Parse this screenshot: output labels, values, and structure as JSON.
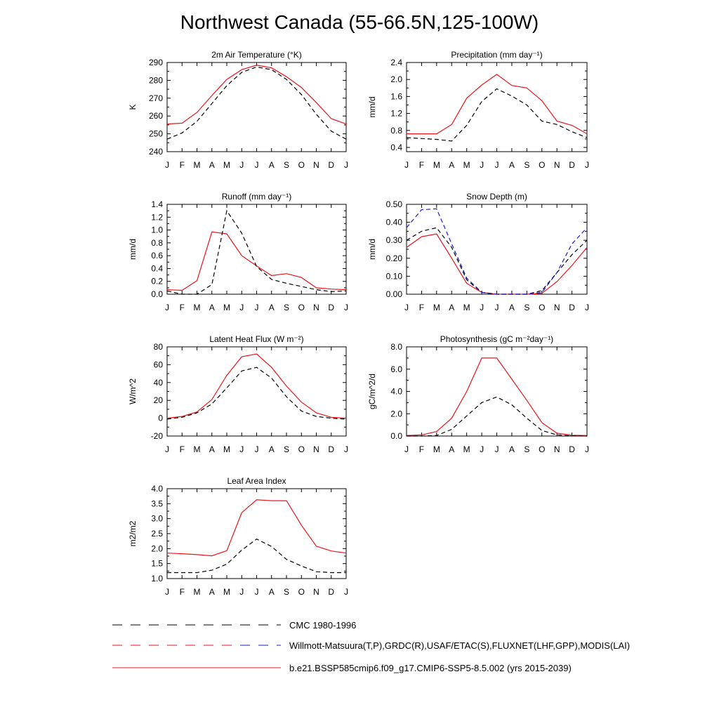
{
  "title": "Northwest Canada (55-66.5N,125-100W)",
  "months": [
    "J",
    "F",
    "M",
    "A",
    "M",
    "J",
    "J",
    "A",
    "S",
    "O",
    "N",
    "D",
    "J"
  ],
  "colors": {
    "model": "#e8151b",
    "obs": "#000000",
    "obs2": "#1b1bd6",
    "axis": "#000000"
  },
  "legend": [
    {
      "text": "CMC 1980-1996",
      "style": "dashed-black"
    },
    {
      "text": "Willmott-Matsuura(T,P),GRDC(R),USAF/ETAC(S),FLUXNET(LHF,GPP),MODIS(LAI)",
      "style": "dashed-red-blue"
    },
    {
      "text": "b.e21.BSSP585cmip6.f09_g17.CMIP6-SSP5-8.5.002 (yrs 2015-2039)",
      "style": "solid-red"
    }
  ],
  "chart_data": [
    {
      "type": "line",
      "title": "2m Air Temperature (°K)",
      "ylabel": "K",
      "ylim": [
        240,
        290
      ],
      "yticks": [
        240,
        250,
        260,
        270,
        280,
        290
      ],
      "ytick_labels": [
        "240",
        "250",
        "260",
        "270",
        "280",
        "290"
      ],
      "series": [
        {
          "role": "model",
          "values": [
            255.5,
            256,
            262,
            271.5,
            280.5,
            286,
            288.5,
            287,
            282,
            276,
            267.5,
            258.5,
            255.5
          ]
        },
        {
          "role": "obs",
          "values": [
            247,
            250.5,
            257,
            267,
            277,
            284.5,
            287.5,
            286,
            280.5,
            272,
            261,
            251.5,
            247
          ]
        }
      ]
    },
    {
      "type": "line",
      "title": "Precipitation (mm day⁻¹)",
      "ylabel": "mm/d",
      "ylim": [
        0.3,
        2.4
      ],
      "yticks": [
        0.4,
        0.8,
        1.2,
        1.6,
        2.0,
        2.4
      ],
      "ytick_labels": [
        "0.4",
        "0.8",
        "1.2",
        "1.6",
        "2.0",
        "2.4"
      ],
      "series": [
        {
          "role": "model",
          "values": [
            0.72,
            0.72,
            0.72,
            0.94,
            1.56,
            1.87,
            2.12,
            1.86,
            1.8,
            1.5,
            1.02,
            0.92,
            0.72
          ]
        },
        {
          "role": "obs",
          "values": [
            0.63,
            0.61,
            0.59,
            0.55,
            0.92,
            1.48,
            1.78,
            1.61,
            1.4,
            1.02,
            0.94,
            0.77,
            0.63
          ]
        }
      ]
    },
    {
      "type": "line",
      "title": "Runoff (mm day⁻¹)",
      "ylabel": "mm/d",
      "ylim": [
        0,
        1.4
      ],
      "yticks": [
        0,
        0.2,
        0.4,
        0.6,
        0.8,
        1.0,
        1.2,
        1.4
      ],
      "ytick_labels": [
        "0.0",
        "0.2",
        "0.4",
        "0.6",
        "0.8",
        "1.0",
        "1.2",
        "1.4"
      ],
      "series": [
        {
          "role": "model",
          "values": [
            0.07,
            0.06,
            0.21,
            0.97,
            0.94,
            0.6,
            0.44,
            0.29,
            0.32,
            0.26,
            0.1,
            0.08,
            0.07
          ]
        },
        {
          "role": "obs",
          "values": [
            0.05,
            0.0,
            0.0,
            0.15,
            1.3,
            0.95,
            0.43,
            0.23,
            0.17,
            0.12,
            0.07,
            0.04,
            0.05
          ]
        }
      ]
    },
    {
      "type": "line",
      "title": "Snow Depth (m)",
      "ylabel": "mm/d",
      "ylim": [
        0,
        0.5
      ],
      "yticks": [
        0,
        0.1,
        0.2,
        0.3,
        0.4,
        0.5
      ],
      "ytick_labels": [
        "0.00",
        "0.10",
        "0.20",
        "0.30",
        "0.40",
        "0.50"
      ],
      "series": [
        {
          "role": "model",
          "values": [
            0.26,
            0.32,
            0.335,
            0.2,
            0.06,
            0.01,
            0.0,
            0.0,
            0.0,
            0.005,
            0.07,
            0.16,
            0.26
          ]
        },
        {
          "role": "obs",
          "values": [
            0.3,
            0.35,
            0.37,
            0.26,
            0.08,
            0.01,
            0.0,
            0.0,
            0.0,
            0.02,
            0.12,
            0.22,
            0.3
          ]
        },
        {
          "role": "obs2",
          "values": [
            0.37,
            0.47,
            0.475,
            0.28,
            0.09,
            0.01,
            0.0,
            0.0,
            0.0,
            0.01,
            0.12,
            0.28,
            0.37
          ]
        }
      ]
    },
    {
      "type": "line",
      "title": "Latent Heat Flux (W m⁻²)",
      "ylabel": "W/m^2",
      "ylim": [
        -20,
        80
      ],
      "yticks": [
        -20,
        0,
        20,
        40,
        60,
        80
      ],
      "ytick_labels": [
        "-20",
        "0",
        "20",
        "40",
        "60",
        "80"
      ],
      "series": [
        {
          "role": "model",
          "values": [
            0,
            2,
            7,
            21,
            48,
            69,
            72,
            57,
            36,
            18,
            6,
            1,
            0
          ]
        },
        {
          "role": "obs",
          "values": [
            -1,
            1,
            6,
            16,
            34,
            53,
            57,
            45,
            24,
            8,
            2,
            0,
            -1
          ]
        }
      ]
    },
    {
      "type": "line",
      "title": "Photosynthesis (gC m⁻²day⁻¹)",
      "ylabel": "gC/m^2/d",
      "ylim": [
        0,
        8
      ],
      "yticks": [
        0,
        2,
        4,
        6,
        8
      ],
      "ytick_labels": [
        "0.0",
        "2.0",
        "4.0",
        "6.0",
        "8.0"
      ],
      "series": [
        {
          "role": "model",
          "values": [
            0.05,
            0.1,
            0.4,
            1.6,
            4.0,
            7.0,
            7.0,
            5.1,
            3.2,
            1.2,
            0.25,
            0.07,
            0.05
          ]
        },
        {
          "role": "obs",
          "values": [
            0,
            0,
            0.05,
            0.6,
            1.8,
            3.0,
            3.5,
            2.8,
            1.6,
            0.5,
            0.1,
            0.02,
            0
          ]
        }
      ]
    },
    {
      "type": "line",
      "title": "Leaf Area Index",
      "ylabel": "m2/m2",
      "ylim": [
        1.0,
        4.0
      ],
      "yticks": [
        1.0,
        1.5,
        2.0,
        2.5,
        3.0,
        3.5,
        4.0
      ],
      "ytick_labels": [
        "1.0",
        "1.5",
        "2.0",
        "2.5",
        "3.0",
        "3.5",
        "4.0"
      ],
      "series": [
        {
          "role": "model",
          "values": [
            1.85,
            1.83,
            1.8,
            1.76,
            1.93,
            3.2,
            3.63,
            3.6,
            3.6,
            2.78,
            2.08,
            1.92,
            1.85
          ]
        },
        {
          "role": "obs",
          "values": [
            1.2,
            1.2,
            1.2,
            1.28,
            1.48,
            1.95,
            2.32,
            2.07,
            1.64,
            1.42,
            1.23,
            1.2,
            1.2
          ]
        }
      ]
    }
  ]
}
